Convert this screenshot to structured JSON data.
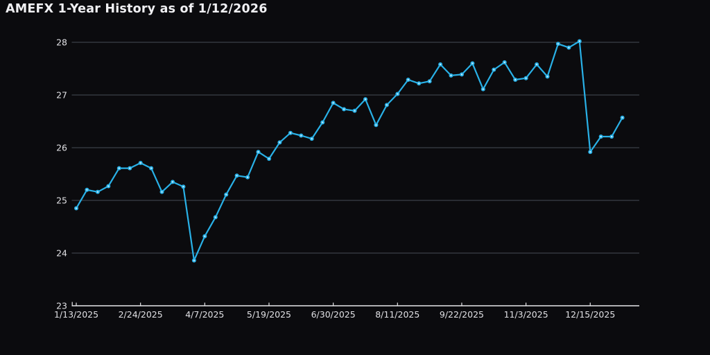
{
  "header": {
    "title": "AMEFX 1-Year History as of 1/12/2026"
  },
  "colors": {
    "background": "#0b0b0e",
    "line": "#29b1e7",
    "marker_core": "#d8f1fc",
    "gridline": "#474d57",
    "axis": "#e8e8ea",
    "tick_label": "#e0e0e4",
    "title_text": "#f0f0f3"
  },
  "chart_data": {
    "type": "line",
    "title": "AMEFX 1-Year History as of 1/12/2026",
    "xlabel": "",
    "ylabel": "",
    "ylim": [
      23,
      28
    ],
    "y_ticks": [
      23,
      24,
      25,
      26,
      27,
      28
    ],
    "x_tick_labels": [
      "1/13/2025",
      "2/24/2025",
      "4/7/2025",
      "5/19/2025",
      "6/30/2025",
      "8/11/2025",
      "9/22/2025",
      "11/3/2025",
      "12/15/2025"
    ],
    "x_tick_every_n_points": 6,
    "grid": "horizontal-only",
    "legend": "none",
    "marker_style": "dot-with-light-core",
    "series": [
      {
        "name": "AMEFX",
        "x": [
          "1/13/2025",
          "1/20/2025",
          "1/27/2025",
          "2/3/2025",
          "2/10/2025",
          "2/17/2025",
          "2/24/2025",
          "3/3/2025",
          "3/10/2025",
          "3/17/2025",
          "3/24/2025",
          "3/31/2025",
          "4/7/2025",
          "4/14/2025",
          "4/21/2025",
          "4/28/2025",
          "5/5/2025",
          "5/12/2025",
          "5/19/2025",
          "5/26/2025",
          "6/2/2025",
          "6/9/2025",
          "6/16/2025",
          "6/23/2025",
          "6/30/2025",
          "7/7/2025",
          "7/14/2025",
          "7/21/2025",
          "7/28/2025",
          "8/4/2025",
          "8/11/2025",
          "8/18/2025",
          "8/25/2025",
          "9/1/2025",
          "9/8/2025",
          "9/15/2025",
          "9/22/2025",
          "9/29/2025",
          "10/6/2025",
          "10/13/2025",
          "10/20/2025",
          "10/27/2025",
          "11/3/2025",
          "11/10/2025",
          "11/17/2025",
          "11/24/2025",
          "12/1/2025",
          "12/8/2025",
          "12/15/2025",
          "12/22/2025",
          "12/29/2025",
          "1/5/2026"
        ],
        "values": [
          24.85,
          25.2,
          25.16,
          25.27,
          25.61,
          25.61,
          25.71,
          25.61,
          25.16,
          25.35,
          25.26,
          23.86,
          24.32,
          24.68,
          25.11,
          25.47,
          25.44,
          25.92,
          25.79,
          26.1,
          26.28,
          26.23,
          26.17,
          26.48,
          26.85,
          26.73,
          26.7,
          26.92,
          26.43,
          26.81,
          27.02,
          27.29,
          27.22,
          27.26,
          27.58,
          27.37,
          27.39,
          27.6,
          27.11,
          27.48,
          27.62,
          27.29,
          27.32,
          27.58,
          27.35,
          27.97,
          27.9,
          28.02,
          25.92,
          26.21,
          26.21,
          26.57
        ]
      }
    ]
  }
}
